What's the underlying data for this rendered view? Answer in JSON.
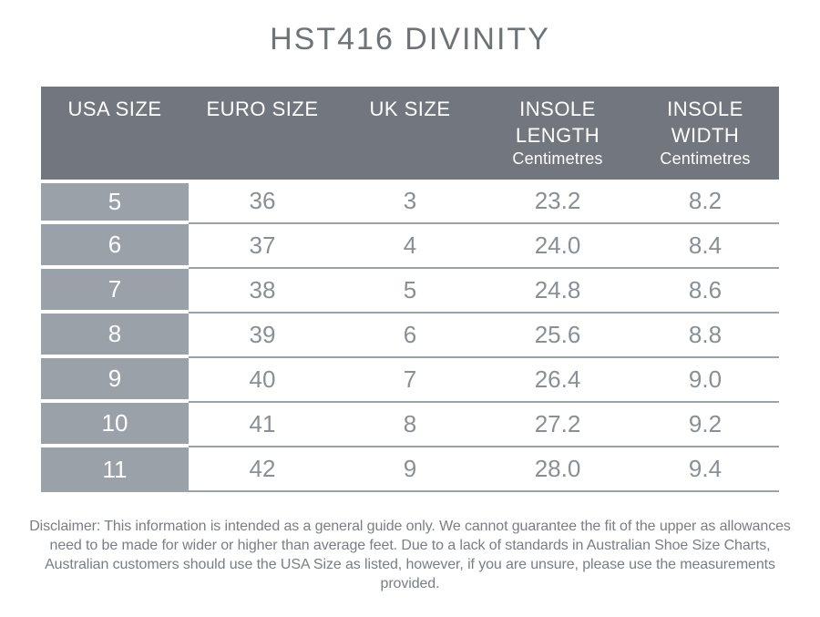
{
  "title": "HST416 DIVINITY",
  "colors": {
    "header_bg": "#71767f",
    "label_col_bg": "#9aa1a9",
    "separator": "#9aa1a9",
    "header_text": "#ffffff",
    "data_text": "#8a8f96",
    "title_text": "#6e7377",
    "disclaimer_text": "#797e84"
  },
  "table": {
    "headers": [
      {
        "label": "USA SIZE",
        "label2": "",
        "sub": ""
      },
      {
        "label": "EURO SIZE",
        "label2": "",
        "sub": ""
      },
      {
        "label": "UK SIZE",
        "label2": "",
        "sub": ""
      },
      {
        "label": "INSOLE",
        "label2": "LENGTH",
        "sub": "Centimetres"
      },
      {
        "label": "INSOLE",
        "label2": "WIDTH",
        "sub": "Centimetres"
      }
    ]
  },
  "chart_data": {
    "type": "table",
    "title": "HST416 DIVINITY",
    "columns": [
      "USA SIZE",
      "EURO SIZE",
      "UK SIZE",
      "INSOLE LENGTH Centimetres",
      "INSOLE WIDTH Centimetres"
    ],
    "rows": [
      [
        "5",
        "36",
        "3",
        "23.2",
        "8.2"
      ],
      [
        "6",
        "37",
        "4",
        "24.0",
        "8.4"
      ],
      [
        "7",
        "38",
        "5",
        "24.8",
        "8.6"
      ],
      [
        "8",
        "39",
        "6",
        "25.6",
        "8.8"
      ],
      [
        "9",
        "40",
        "7",
        "26.4",
        "9.0"
      ],
      [
        "10",
        "41",
        "8",
        "27.2",
        "9.2"
      ],
      [
        "11",
        "42",
        "9",
        "28.0",
        "9.4"
      ]
    ]
  },
  "disclaimer": "Disclaimer: This information is intended as a general guide only. We cannot guarantee the fit of the upper as allowances need to be made for wider or higher than average feet. Due to a lack of standards in Australian Shoe Size Charts, Australian customers should use the USA Size as listed, however, if you are unsure, please use the measurements provided."
}
